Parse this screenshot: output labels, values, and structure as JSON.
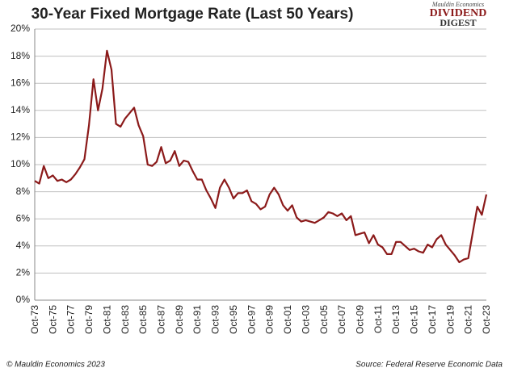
{
  "chart_data": {
    "type": "line",
    "title": "30-Year Fixed Mortgage Rate (Last 50 Years)",
    "categories": [
      "Oct-73",
      null,
      null,
      null,
      "Oct-75",
      null,
      null,
      null,
      "Oct-77",
      null,
      null,
      null,
      "Oct-79",
      null,
      null,
      null,
      "Oct-81",
      null,
      null,
      null,
      "Oct-83",
      null,
      null,
      null,
      "Oct-85",
      null,
      null,
      null,
      "Oct-87",
      null,
      null,
      null,
      "Oct-89",
      null,
      null,
      null,
      "Oct-91",
      null,
      null,
      null,
      "Oct-93",
      null,
      null,
      null,
      "Oct-95",
      null,
      null,
      null,
      "Oct-97",
      null,
      null,
      null,
      "Oct-99",
      null,
      null,
      null,
      "Oct-01",
      null,
      null,
      null,
      "Oct-03",
      null,
      null,
      null,
      "Oct-05",
      null,
      null,
      null,
      "Oct-07",
      null,
      null,
      null,
      "Oct-09",
      null,
      null,
      null,
      "Oct-11",
      null,
      null,
      null,
      "Oct-13",
      null,
      null,
      null,
      "Oct-15",
      null,
      null,
      null,
      "Oct-17",
      null,
      null,
      null,
      "Oct-19",
      null,
      null,
      null,
      "Oct-21",
      null,
      null,
      null,
      "Oct-23"
    ],
    "values": [
      8.8,
      8.6,
      9.9,
      9.0,
      9.2,
      8.8,
      8.9,
      8.7,
      8.9,
      9.3,
      9.8,
      10.4,
      12.9,
      16.3,
      14.0,
      15.6,
      18.4,
      17.0,
      13.0,
      12.8,
      13.4,
      13.8,
      14.2,
      12.9,
      12.1,
      10.0,
      9.9,
      10.2,
      11.3,
      10.1,
      10.3,
      11.0,
      9.9,
      10.3,
      10.2,
      9.5,
      8.9,
      8.9,
      8.1,
      7.5,
      6.8,
      8.3,
      8.9,
      8.3,
      7.5,
      7.9,
      7.9,
      8.1,
      7.3,
      7.1,
      6.7,
      6.9,
      7.8,
      8.3,
      7.8,
      7.0,
      6.6,
      7.0,
      6.1,
      5.8,
      5.9,
      5.8,
      5.7,
      5.9,
      6.1,
      6.5,
      6.4,
      6.2,
      6.4,
      5.9,
      6.2,
      4.8,
      4.9,
      5.0,
      4.2,
      4.8,
      4.1,
      3.9,
      3.4,
      3.4,
      4.3,
      4.3,
      4.0,
      3.7,
      3.8,
      3.6,
      3.5,
      4.1,
      3.9,
      4.5,
      4.8,
      4.1,
      3.7,
      3.3,
      2.8,
      3.0,
      3.1,
      5.0,
      6.9,
      6.3,
      7.8
    ],
    "color": "#8b1a1a",
    "ylim": [
      0,
      20
    ],
    "yticks": [
      {
        "value": 0,
        "label": "0%"
      },
      {
        "value": 2,
        "label": "2%"
      },
      {
        "value": 4,
        "label": "4%"
      },
      {
        "value": 6,
        "label": "6%"
      },
      {
        "value": 8,
        "label": "8%"
      },
      {
        "value": 10,
        "label": "10%"
      },
      {
        "value": 12,
        "label": "12%"
      },
      {
        "value": 14,
        "label": "14%"
      },
      {
        "value": 16,
        "label": "16%"
      },
      {
        "value": 18,
        "label": "18%"
      },
      {
        "value": 20,
        "label": "20%"
      }
    ],
    "grid": true
  },
  "logo": {
    "publisher": "Mauldin Economics",
    "line1": "DIVIDEND",
    "line2": "DIGEST"
  },
  "footer": {
    "copyright": "© Mauldin Economics 2023",
    "source": "Source: Federal Reserve Economic Data"
  }
}
